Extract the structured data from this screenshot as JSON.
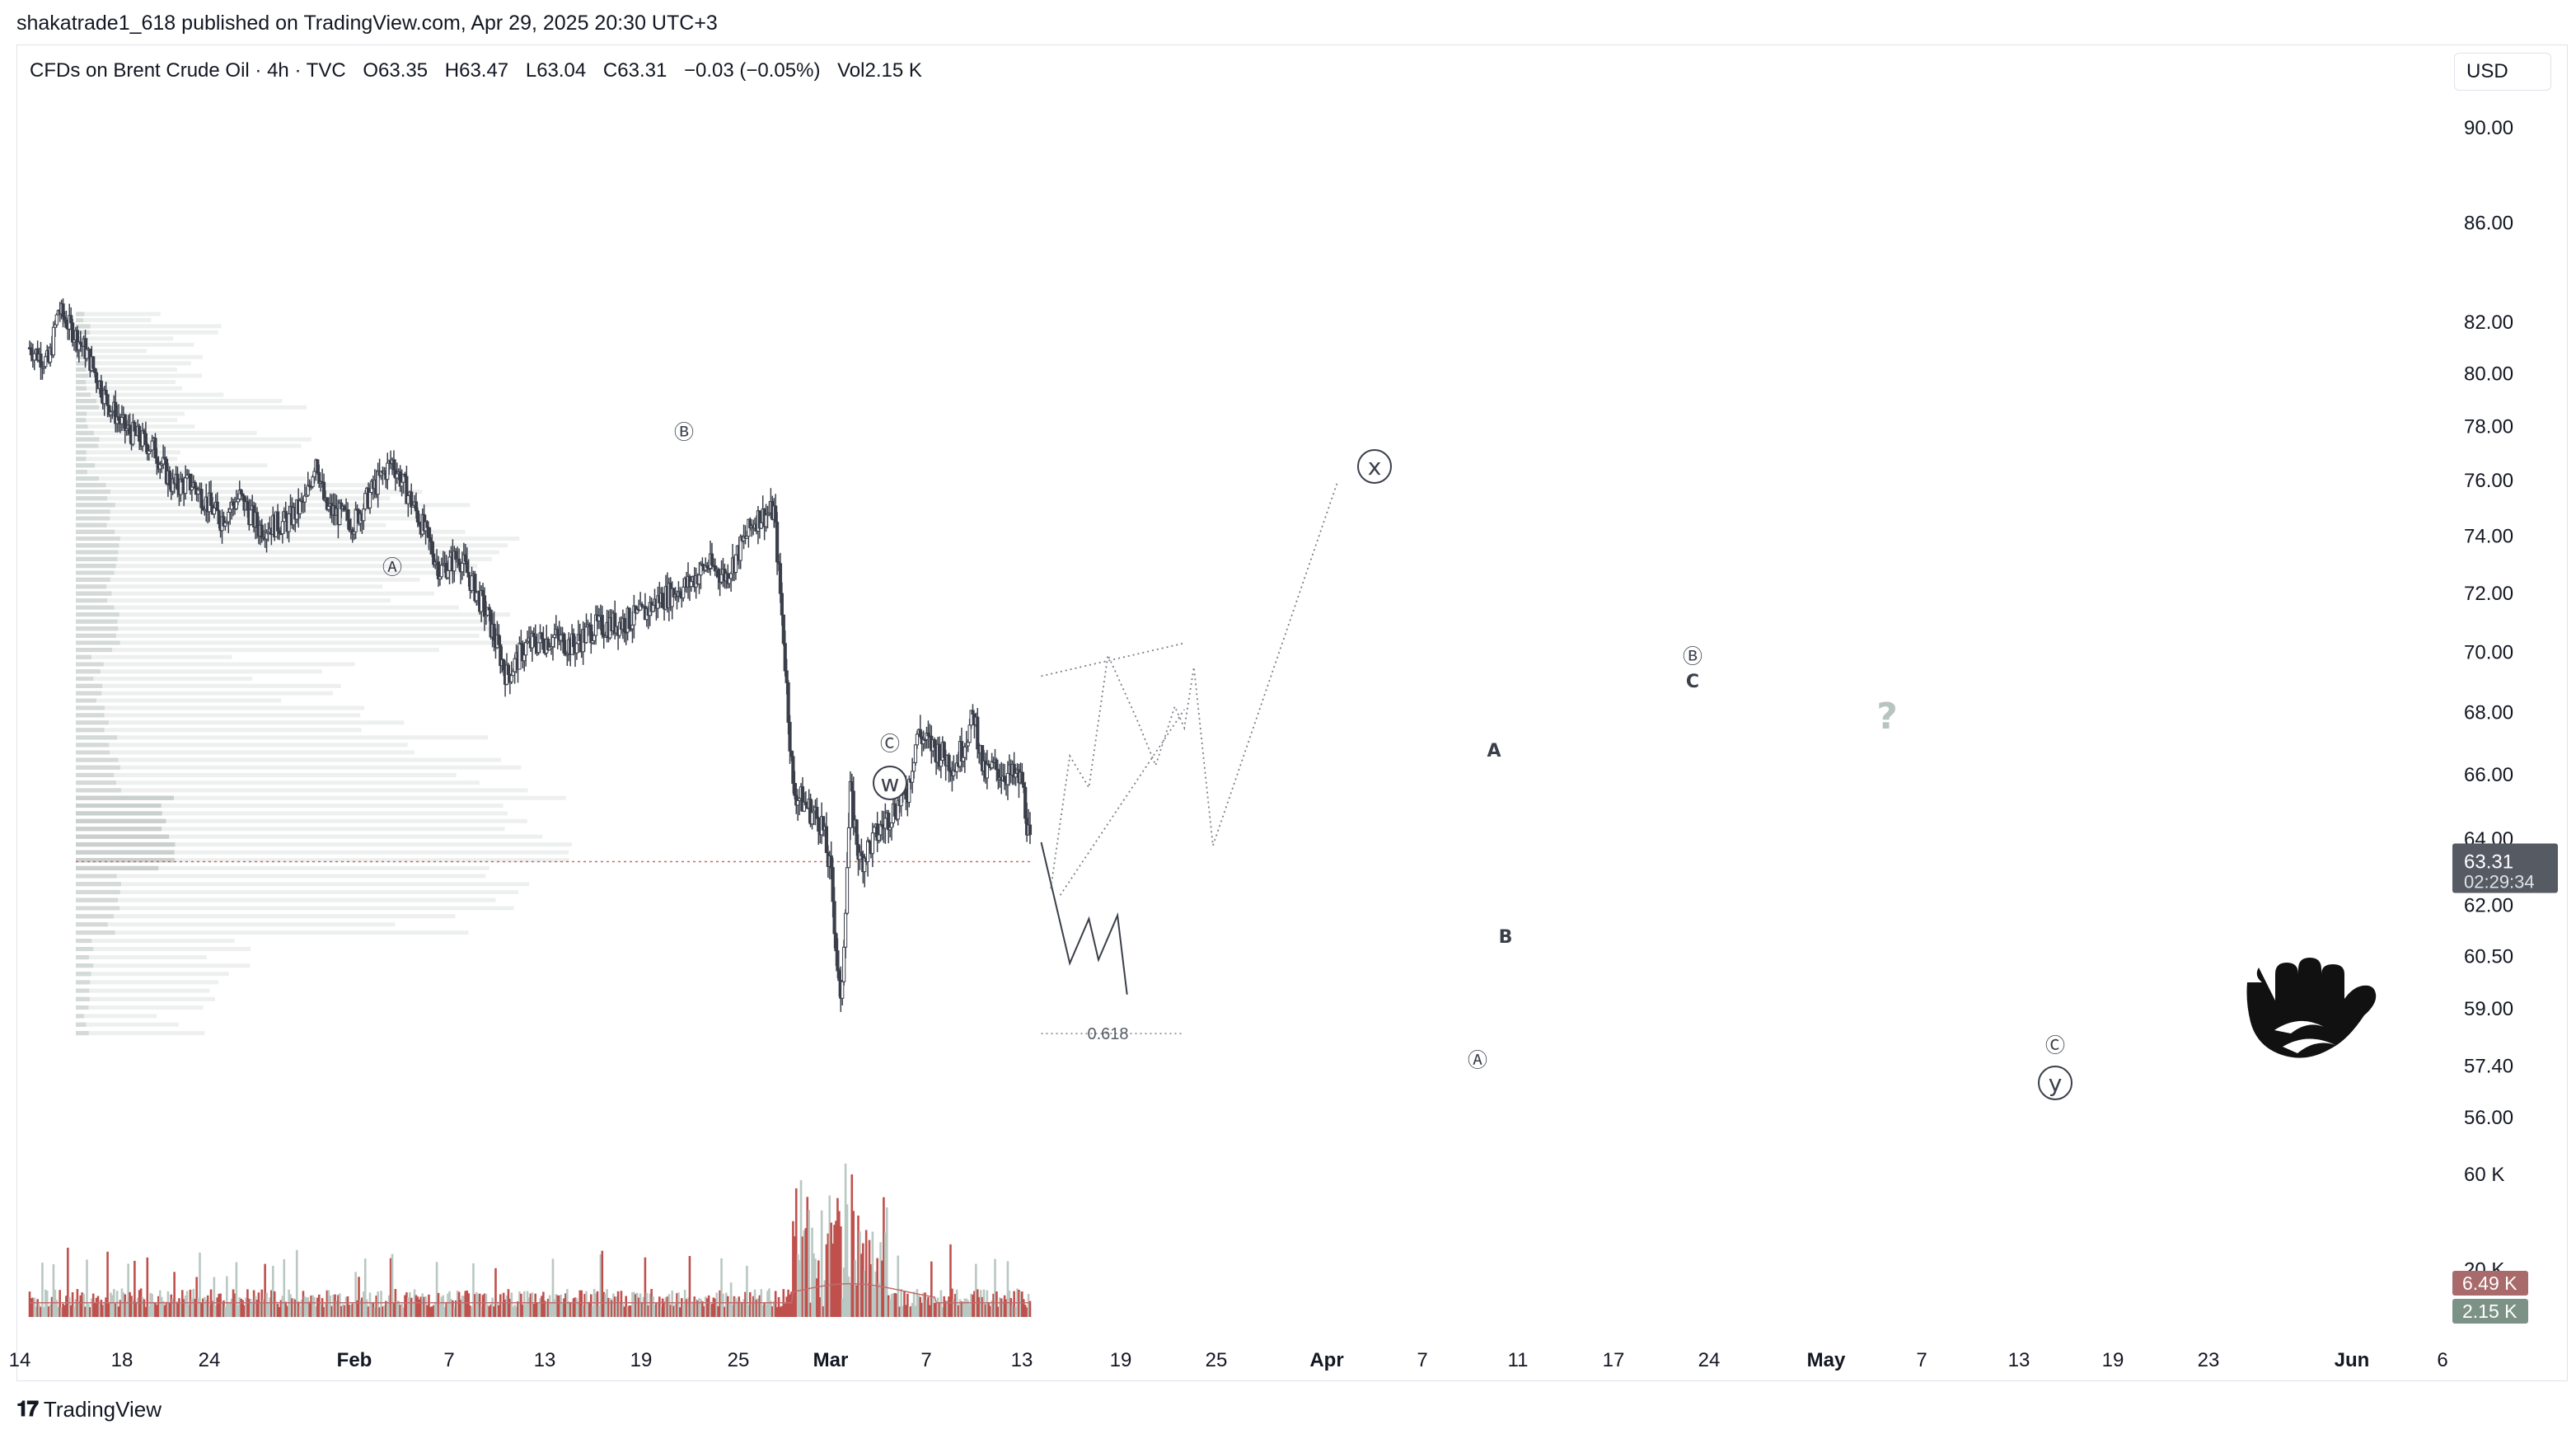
{
  "header": {
    "published": "shakatrade1_618 published on TradingView.com, Apr 29, 2025 20:30 UTC+3"
  },
  "legend": {
    "symbol": "CFDs on Brent Crude Oil · 4h · TVC",
    "open_label": "O",
    "open": "63.35",
    "high_label": "H",
    "high": "63.47",
    "low_label": "L",
    "low": "63.04",
    "close_label": "C",
    "close": "63.31",
    "change": "−0.03 (−0.05%)",
    "vol_label": "Vol",
    "vol": "2.15 K"
  },
  "currency": "USD",
  "price_axis": {
    "ticks": [
      "90.00",
      "86.00",
      "82.00",
      "80.00",
      "78.00",
      "76.00",
      "74.00",
      "72.00",
      "70.00",
      "68.00",
      "66.00",
      "64.00",
      "62.00",
      "60.50",
      "59.00",
      "57.40",
      "56.00"
    ],
    "current_price": "63.31",
    "countdown": "02:29:34"
  },
  "volume_axis": {
    "ticks": [
      "60 K",
      "20 K"
    ],
    "vol_high_badge": "6.49 K",
    "vol_low_badge": "2.15 K"
  },
  "time_axis": {
    "ticks": [
      {
        "t": "14",
        "bold": false
      },
      {
        "t": "18",
        "bold": false
      },
      {
        "t": "24",
        "bold": false
      },
      {
        "t": "Feb",
        "bold": true
      },
      {
        "t": "7",
        "bold": false
      },
      {
        "t": "13",
        "bold": false
      },
      {
        "t": "19",
        "bold": false
      },
      {
        "t": "25",
        "bold": false
      },
      {
        "t": "Mar",
        "bold": true
      },
      {
        "t": "7",
        "bold": false
      },
      {
        "t": "13",
        "bold": false
      },
      {
        "t": "19",
        "bold": false
      },
      {
        "t": "25",
        "bold": false
      },
      {
        "t": "Apr",
        "bold": true
      },
      {
        "t": "7",
        "bold": false
      },
      {
        "t": "11",
        "bold": false
      },
      {
        "t": "17",
        "bold": false
      },
      {
        "t": "24",
        "bold": false
      },
      {
        "t": "May",
        "bold": true
      },
      {
        "t": "7",
        "bold": false
      },
      {
        "t": "13",
        "bold": false
      },
      {
        "t": "19",
        "bold": false
      },
      {
        "t": "23",
        "bold": false
      },
      {
        "t": "Jun",
        "bold": true
      },
      {
        "t": "6",
        "bold": false
      }
    ]
  },
  "wave_labels": [
    {
      "text": "Ⓐ",
      "near": "Feb 3"
    },
    {
      "text": "Ⓑ",
      "near": "Feb 21"
    },
    {
      "text": "Ⓒ",
      "near": "Mar 5"
    },
    {
      "text": "w",
      "near": "Mar 5"
    },
    {
      "text": "x",
      "near": "Apr 2"
    },
    {
      "text": "A",
      "near": "Apr 9"
    },
    {
      "text": "B",
      "near": "Apr 10"
    },
    {
      "text": "Ⓐ",
      "near": "Apr 9"
    },
    {
      "text": "Ⓑ",
      "near": "Apr 23"
    },
    {
      "text": "C",
      "near": "Apr 23"
    },
    {
      "text": "?",
      "near": "May 13"
    },
    {
      "text": "Ⓒ",
      "near": "May 17"
    },
    {
      "text": "y",
      "near": "May 17"
    }
  ],
  "fib_label": "0.618",
  "footer": {
    "brand": "TradingView"
  },
  "chart_data": {
    "type": "candlestick",
    "title": "CFDs on Brent Crude Oil · 4h · TVC",
    "xlabel": "",
    "ylabel": "",
    "ylim": [
      55.5,
      91
    ],
    "scale": "log",
    "price_path": [
      [
        "Jan 14",
        81.0
      ],
      [
        "Jan 16",
        80.4
      ],
      [
        "Jan 17",
        82.5
      ],
      [
        "Jan 20",
        80.8
      ],
      [
        "Jan 22",
        79.0
      ],
      [
        "Jan 24",
        77.9
      ],
      [
        "Jan 27",
        77.2
      ],
      [
        "Jan 29",
        75.8
      ],
      [
        "Jan 31",
        75.9
      ],
      [
        "Feb 3",
        74.6
      ],
      [
        "Feb 5",
        75.4
      ],
      [
        "Feb 7",
        74.3
      ],
      [
        "Feb 10",
        74.5
      ],
      [
        "Feb 12",
        75.3
      ],
      [
        "Feb 13",
        76.9
      ],
      [
        "Feb 14",
        75.0
      ],
      [
        "Feb 17",
        74.5
      ],
      [
        "Feb 19",
        75.7
      ],
      [
        "Feb 21",
        76.7
      ],
      [
        "Feb 24",
        74.5
      ],
      [
        "Feb 26",
        72.8
      ],
      [
        "Feb 28",
        73.3
      ],
      [
        "Mar 3",
        71.2
      ],
      [
        "Mar 5",
        69.2
      ],
      [
        "Mar 7",
        70.2
      ],
      [
        "Mar 10",
        70.5
      ],
      [
        "Mar 12",
        70.2
      ],
      [
        "Mar 14",
        70.8
      ],
      [
        "Mar 17",
        71.0
      ],
      [
        "Mar 19",
        71.2
      ],
      [
        "Mar 21",
        71.8
      ],
      [
        "Mar 24",
        72.3
      ],
      [
        "Mar 26",
        73.0
      ],
      [
        "Mar 28",
        72.6
      ],
      [
        "Mar 31",
        74.6
      ],
      [
        "Apr 2",
        74.9
      ],
      [
        "Apr 3",
        70.5
      ],
      [
        "Apr 4",
        65.5
      ],
      [
        "Apr 7",
        64.5
      ],
      [
        "Apr 8",
        62.8
      ],
      [
        "Apr 9",
        58.9
      ],
      [
        "Apr 10",
        65.4
      ],
      [
        "Apr 11",
        63.3
      ],
      [
        "Apr 14",
        64.7
      ],
      [
        "Apr 16",
        65.5
      ],
      [
        "Apr 17",
        67.3
      ],
      [
        "Apr 21",
        66.3
      ],
      [
        "Apr 23",
        67.9
      ],
      [
        "Apr 24",
        66.0
      ],
      [
        "Apr 25",
        66.2
      ],
      [
        "Apr 28",
        65.8
      ],
      [
        "Apr 29",
        63.31
      ]
    ],
    "last": {
      "open": 63.35,
      "high": 63.47,
      "low": 63.04,
      "close": 63.31,
      "change": -0.03,
      "change_pct": -0.05,
      "volume_k": 2.15
    },
    "volume_scale_k": [
      0,
      60
    ],
    "volume_peak_k": 60,
    "projections": [
      {
        "name": "",
        "style": "solid",
        "points": [
          [
            "Apr 30",
            63.9
          ],
          [
            "May 3",
            60.3
          ],
          [
            "May 5",
            61.6
          ],
          [
            "May 6",
            60.4
          ],
          [
            "May 8",
            61.7
          ],
          [
            "May 9",
            59.4
          ]
        ]
      },
      {
        "name": "",
        "style": "dotted",
        "points": [
          [
            "May 1",
            62.5
          ],
          [
            "May 3",
            66.6
          ],
          [
            "May 5",
            65.6
          ],
          [
            "May 7",
            69.9
          ],
          [
            "May 10",
            67.8
          ],
          [
            "May 12",
            66.3
          ],
          [
            "May 14",
            68.2
          ],
          [
            "May 15",
            67.5
          ],
          [
            "May 16",
            69.5
          ],
          [
            "May 18",
            63.8
          ],
          [
            "May 31",
            75.9
          ]
        ]
      },
      {
        "name": "",
        "style": "dotted",
        "points": [
          [
            "May 2",
            62.3
          ],
          [
            "May 15",
            68.1
          ]
        ]
      },
      {
        "name": "",
        "style": "dotted",
        "points": [
          [
            "Apr 30",
            69.2
          ],
          [
            "May 15",
            70.3
          ]
        ]
      }
    ],
    "fib_level": {
      "label": "0.618",
      "price": 58.3
    }
  }
}
